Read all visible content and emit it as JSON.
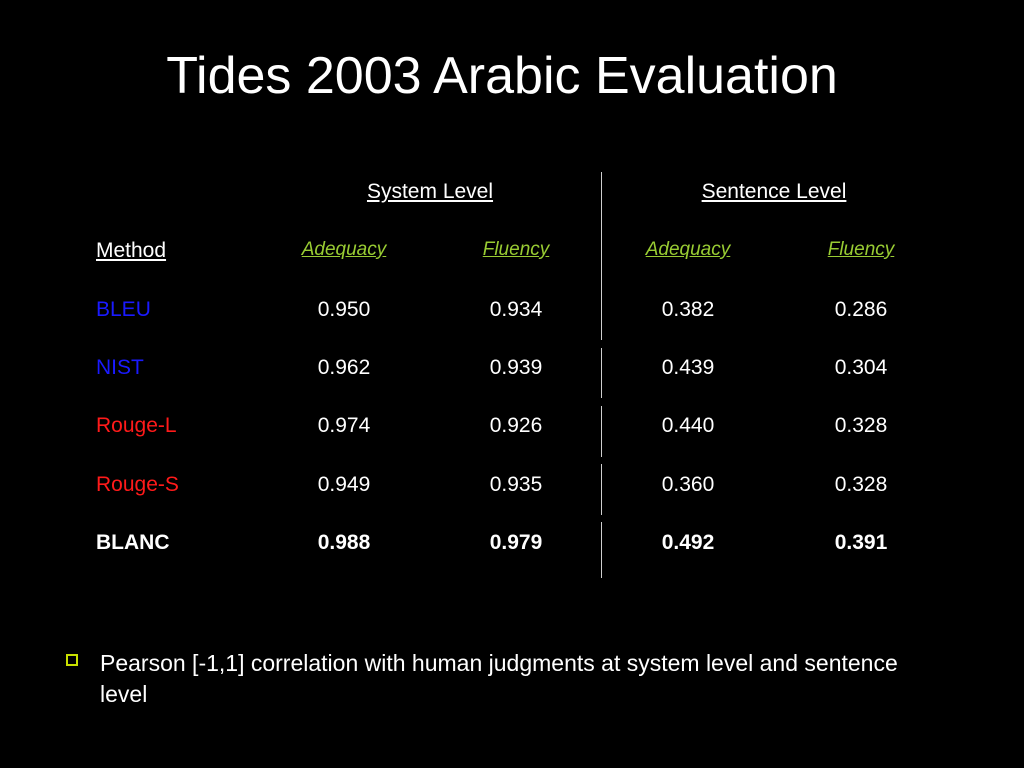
{
  "slide": {
    "title": "Tides 2003 Arabic Evaluation"
  },
  "table": {
    "group_headers": [
      "System Level",
      "Sentence Level"
    ],
    "method_header": "Method",
    "metric_headers": [
      "Adequacy",
      "Fluency",
      "Adequacy",
      "Fluency"
    ],
    "rows": [
      {
        "method": "BLEU",
        "color": "#1a1aff",
        "bold": false,
        "values": [
          "0.950",
          "0.934",
          "0.382",
          "0.286"
        ]
      },
      {
        "method": "NIST",
        "color": "#1a1aff",
        "bold": false,
        "values": [
          "0.962",
          "0.939",
          "0.439",
          "0.304"
        ]
      },
      {
        "method": "Rouge-L",
        "color": "#ff1a1a",
        "bold": false,
        "values": [
          "0.974",
          "0.926",
          "0.440",
          "0.328"
        ]
      },
      {
        "method": "Rouge-S",
        "color": "#ff1a1a",
        "bold": false,
        "values": [
          "0.949",
          "0.935",
          "0.360",
          "0.328"
        ]
      },
      {
        "method": "BLANC",
        "color": "#ffffff",
        "bold": true,
        "values": [
          "0.988",
          "0.979",
          "0.492",
          "0.391"
        ]
      }
    ]
  },
  "bullet": {
    "text": "Pearson [-1,1] correlation with human judgments at system level and sentence level",
    "marker_color": "#c8e000"
  },
  "colors": {
    "background": "#000000",
    "metric_header": "#99cc33",
    "text": "#ffffff"
  }
}
